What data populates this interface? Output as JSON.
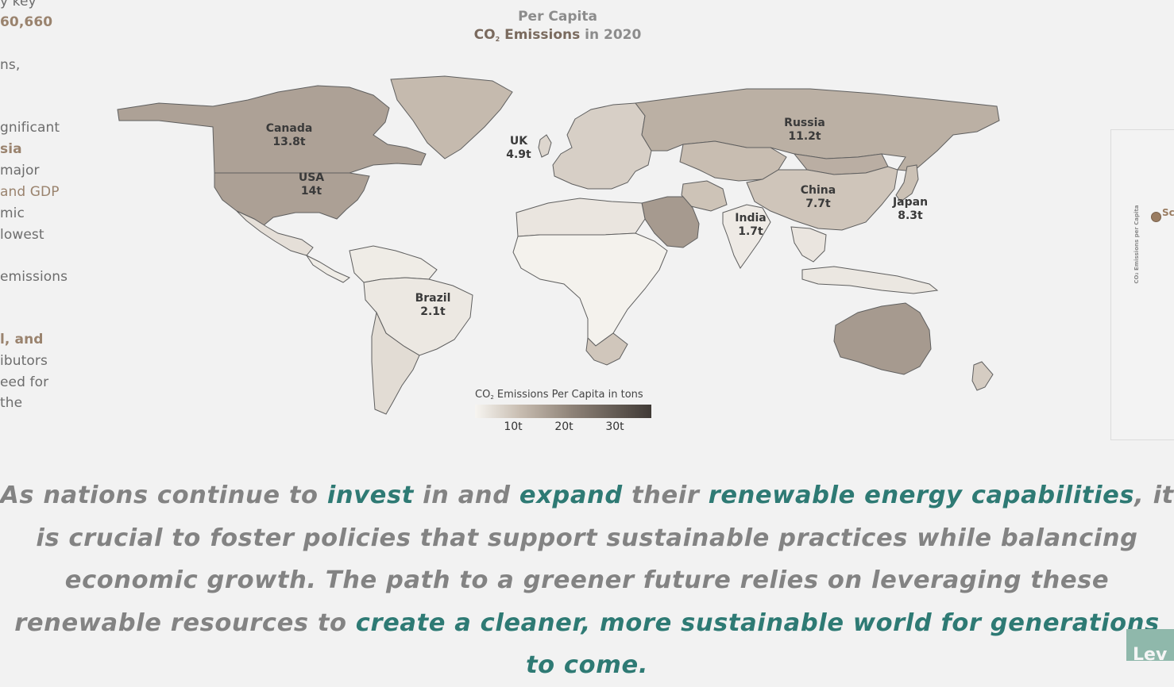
{
  "left_panel": {
    "lines": [
      {
        "text": "y key",
        "style": "normal"
      },
      {
        "text": "60,660",
        "style": "bold"
      },
      {
        "text": "ns,",
        "style": "normal"
      },
      {
        "text": "gnificant",
        "style": "normal"
      },
      {
        "text": "sia",
        "style": "bold"
      },
      {
        "text": "major",
        "style": "normal"
      },
      {
        "text": "and GDP",
        "style": "accent"
      },
      {
        "text": "mic",
        "style": "normal"
      },
      {
        "text": "lowest",
        "style": "normal"
      },
      {
        "text": "emissions",
        "style": "normal"
      },
      {
        "text": "l, and",
        "style": "bold"
      },
      {
        "text": "ibutors",
        "style": "normal"
      },
      {
        "text": "eed for",
        "style": "normal"
      },
      {
        "text": "the",
        "style": "normal"
      }
    ]
  },
  "map": {
    "title_line1": "Per Capita",
    "title_co2": "CO",
    "title_sub": "2",
    "title_emissions": " Emissions",
    "title_year": " in 2020",
    "labels": [
      {
        "country": "Canada",
        "value": "13.8t"
      },
      {
        "country": "USA",
        "value": "14t"
      },
      {
        "country": "UK",
        "value": "4.9t"
      },
      {
        "country": "Russia",
        "value": "11.2t"
      },
      {
        "country": "China",
        "value": "7.7t"
      },
      {
        "country": "Japan",
        "value": "8.3t"
      },
      {
        "country": "India",
        "value": "1.7t"
      },
      {
        "country": "Brazil",
        "value": "2.1t"
      }
    ],
    "region_values": {
      "canada": 13.8,
      "usa": 14,
      "greenland": 9.5,
      "mexico": 3.5,
      "central_america": 1.5,
      "south_america_north": 1.5,
      "brazil": 2.1,
      "argentina_chile": 4,
      "europe": 6,
      "uk": 4.9,
      "russia": 11.2,
      "central_asia": 9,
      "middle_east": 15,
      "iran": 8,
      "north_africa": 2.5,
      "africa": 0.5,
      "south_africa": 7.5,
      "india": 1.7,
      "china": 7.7,
      "mongolia": 11.5,
      "southeast_asia": 2.5,
      "japan": 8.3,
      "indonesia": 2.2,
      "australia": 15,
      "new_zealand": 6.5
    }
  },
  "legend": {
    "title_co2": "CO",
    "title_sub": "2",
    "title_rest": " Emissions Per Capita in tons",
    "ticks": [
      "10t",
      "20t",
      "30t"
    ],
    "max_value": 35,
    "colors": [
      "#f7f5f1",
      "#c9beb2",
      "#8e8277",
      "#403a36"
    ]
  },
  "right_panel": {
    "axis_label": "CO₂ Emissions per Capita",
    "dot_label": "Sc"
  },
  "closing": {
    "segments": [
      {
        "text": "As nations continue to ",
        "highlight": false
      },
      {
        "text": "invest",
        "highlight": true
      },
      {
        "text": " in and ",
        "highlight": false
      },
      {
        "text": "expand",
        "highlight": true
      },
      {
        "text": " their ",
        "highlight": false
      },
      {
        "text": "renewable energy capabilities",
        "highlight": true
      },
      {
        "text": ", it is crucial to foster policies that support sustainable practices while balancing economic growth. The path to a greener future relies on leveraging these renewable resources to ",
        "highlight": false
      },
      {
        "text": "create a cleaner, more sustainable world for generations to come.",
        "highlight": true
      }
    ]
  },
  "corner_button": {
    "label": "Lev"
  }
}
